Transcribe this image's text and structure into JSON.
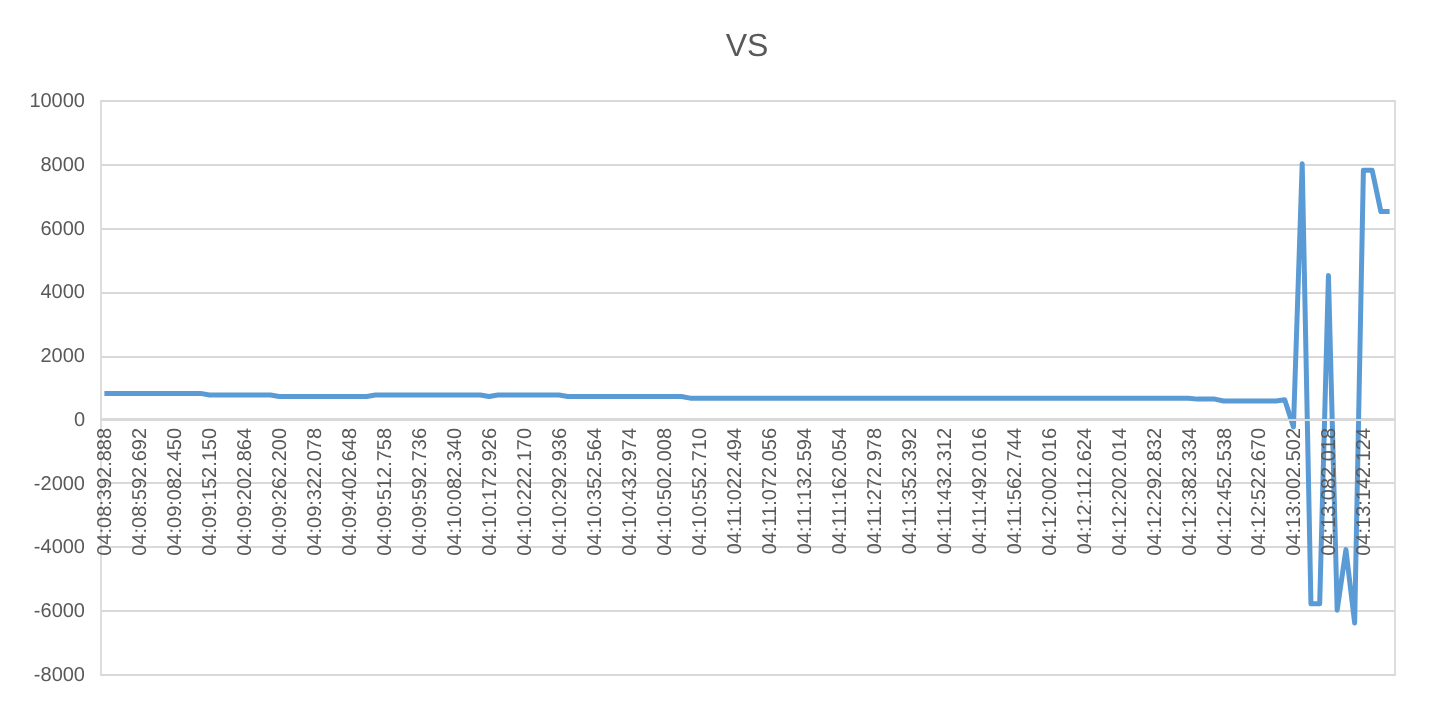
{
  "chart_data": {
    "type": "line",
    "title": "VS",
    "categories": [
      "04:08:392.888",
      null,
      null,
      null,
      "04:08:592.692",
      null,
      null,
      null,
      "04:09:082.450",
      null,
      null,
      null,
      "04:09:152.150",
      null,
      null,
      null,
      "04:09:202.864",
      null,
      null,
      null,
      "04:09:262.200",
      null,
      null,
      null,
      "04:09:322.078",
      null,
      null,
      null,
      "04:09:402.648",
      null,
      null,
      null,
      "04:09:512.758",
      null,
      null,
      null,
      "04:09:592.736",
      null,
      null,
      null,
      "04:10:082.340",
      null,
      null,
      null,
      "04:10:172.926",
      null,
      null,
      null,
      "04:10:222.170",
      null,
      null,
      null,
      "04:10:292.936",
      null,
      null,
      null,
      "04:10:352.564",
      null,
      null,
      null,
      "04:10:432.974",
      null,
      null,
      null,
      "04:10:502.008",
      null,
      null,
      null,
      "04:10:552.710",
      null,
      null,
      null,
      "04:11:022.494",
      null,
      null,
      null,
      "04:11:072.056",
      null,
      null,
      null,
      "04:11:132.594",
      null,
      null,
      null,
      "04:11:162.054",
      null,
      null,
      null,
      "04:11:272.978",
      null,
      null,
      null,
      "04:11:352.392",
      null,
      null,
      null,
      "04:11:432.312",
      null,
      null,
      null,
      "04:11:492.016",
      null,
      null,
      null,
      "04:11:562.744",
      null,
      null,
      null,
      "04:12:002.016",
      null,
      null,
      null,
      "04:12:112.624",
      null,
      null,
      null,
      "04:12:202.014",
      null,
      null,
      null,
      "04:12:292.832",
      null,
      null,
      null,
      "04:12:382.334",
      null,
      null,
      null,
      "04:12:452.538",
      null,
      null,
      null,
      "04:12:522.670",
      null,
      null,
      null,
      "04:13:002.502",
      null,
      null,
      null,
      "04:13:082.018",
      null,
      null,
      null,
      "04:13:142.124",
      null,
      null,
      null
    ],
    "series": [
      {
        "color": "#5b9bd5",
        "values": [
          800,
          800,
          800,
          800,
          800,
          800,
          800,
          800,
          800,
          800,
          800,
          800,
          750,
          750,
          750,
          750,
          750,
          750,
          750,
          750,
          700,
          700,
          700,
          700,
          700,
          700,
          700,
          700,
          700,
          700,
          700,
          750,
          750,
          750,
          750,
          750,
          750,
          750,
          750,
          750,
          750,
          750,
          750,
          750,
          700,
          750,
          750,
          750,
          750,
          750,
          750,
          750,
          750,
          700,
          700,
          700,
          700,
          700,
          700,
          700,
          700,
          700,
          700,
          700,
          700,
          700,
          700,
          650,
          650,
          650,
          650,
          650,
          650,
          650,
          650,
          650,
          650,
          650,
          650,
          650,
          650,
          650,
          650,
          650,
          650,
          650,
          650,
          650,
          650,
          650,
          650,
          650,
          650,
          650,
          650,
          650,
          650,
          650,
          650,
          650,
          650,
          650,
          650,
          650,
          650,
          650,
          650,
          650,
          650,
          650,
          650,
          650,
          650,
          650,
          650,
          650,
          650,
          650,
          650,
          650,
          650,
          650,
          650,
          650,
          650,
          620,
          620,
          620,
          560,
          560,
          560,
          560,
          560,
          560,
          560,
          600,
          -250,
          8000,
          -5800,
          -5800,
          4500,
          -6000,
          -4100,
          -6400,
          7800,
          7800,
          6500,
          6500
        ]
      }
    ],
    "ylim": [
      -8000,
      10000
    ],
    "yticks": [
      -8000,
      -6000,
      -4000,
      -2000,
      0,
      2000,
      4000,
      6000,
      8000,
      10000
    ],
    "grid": "y",
    "marker": "none",
    "line_style": "solid"
  }
}
